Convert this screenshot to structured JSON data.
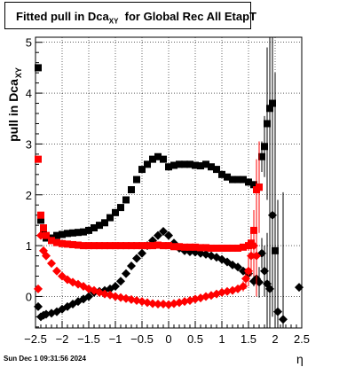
{
  "title": {
    "main": "Fitted pull in Dca",
    "sub": "XY",
    "tail": "for Global Rec All EtapT"
  },
  "timestamp": "Sun Dec  1 09:31:56 2024",
  "chart_data": {
    "type": "scatter",
    "xlabel": "η",
    "ylabel": "pull in Dca",
    "ylabel_sub": "XY",
    "xlim": [
      -2.5,
      2.5
    ],
    "ylim": [
      -0.62,
      5.1
    ],
    "xticks": [
      -2.5,
      -2,
      -1.5,
      -1,
      -0.5,
      0,
      0.5,
      1,
      1.5,
      2,
      2.5
    ],
    "xtick_labels": [
      "−2.5",
      "−2",
      "−1.5",
      "−1",
      "−0.5",
      "0",
      "0.5",
      "1",
      "1.5",
      "2",
      "2.5"
    ],
    "yticks": [
      0,
      1,
      2,
      3,
      4,
      5
    ],
    "ytick_labels": [
      "0",
      "1",
      "2",
      "3",
      "4",
      "5"
    ],
    "grid": true,
    "series": [
      {
        "marker": "square",
        "color": "#000000",
        "x": [
          -2.45,
          -2.4,
          -2.35,
          -2.3,
          -2.2,
          -2.1,
          -2.0,
          -1.9,
          -1.8,
          -1.7,
          -1.6,
          -1.5,
          -1.4,
          -1.3,
          -1.2,
          -1.1,
          -1.0,
          -0.9,
          -0.8,
          -0.7,
          -0.6,
          -0.5,
          -0.4,
          -0.3,
          -0.2,
          -0.1,
          0.0,
          0.1,
          0.2,
          0.3,
          0.4,
          0.5,
          0.6,
          0.7,
          0.8,
          0.9,
          1.0,
          1.1,
          1.2,
          1.3,
          1.4,
          1.5,
          1.6,
          1.7,
          1.75,
          1.8,
          1.85,
          1.9,
          1.95,
          2.0
        ],
        "y": [
          4.5,
          1.5,
          1.3,
          1.15,
          1.15,
          1.2,
          1.22,
          1.24,
          1.25,
          1.26,
          1.27,
          1.3,
          1.35,
          1.4,
          1.45,
          1.55,
          1.65,
          1.75,
          1.9,
          2.1,
          2.3,
          2.5,
          2.6,
          2.7,
          2.75,
          2.7,
          2.55,
          2.58,
          2.6,
          2.6,
          2.6,
          2.58,
          2.57,
          2.6,
          2.55,
          2.5,
          2.4,
          2.35,
          2.3,
          2.3,
          2.3,
          2.25,
          2.2,
          2.15,
          2.75,
          2.95,
          3.4,
          3.7,
          3.8,
          0.9
        ],
        "yerr": [
          0,
          0,
          0,
          0,
          0,
          0,
          0,
          0,
          0,
          0,
          0,
          0,
          0,
          0,
          0,
          0,
          0,
          0,
          0,
          0,
          0,
          0,
          0,
          0,
          0,
          0,
          0,
          0,
          0,
          0,
          0,
          0,
          0,
          0,
          0,
          0,
          0,
          0,
          0,
          0,
          0,
          0,
          0,
          0.2,
          0.3,
          0.6,
          1.5,
          2.5,
          3.2,
          3.5
        ]
      },
      {
        "marker": "diamond",
        "color": "#000000",
        "x": [
          -2.45,
          -2.4,
          -2.35,
          -2.3,
          -2.2,
          -2.1,
          -2.0,
          -1.9,
          -1.8,
          -1.7,
          -1.6,
          -1.5,
          -1.4,
          -1.3,
          -1.2,
          -1.1,
          -1.0,
          -0.9,
          -0.8,
          -0.7,
          -0.6,
          -0.5,
          -0.4,
          -0.3,
          -0.2,
          -0.1,
          0.0,
          0.1,
          0.2,
          0.3,
          0.4,
          0.5,
          0.6,
          0.7,
          0.8,
          0.9,
          1.0,
          1.1,
          1.2,
          1.3,
          1.4,
          1.5,
          1.6,
          1.65,
          1.7,
          1.75,
          1.8,
          1.85,
          1.9,
          1.95,
          2.05,
          2.15,
          2.45
        ],
        "y": [
          -0.2,
          -0.4,
          -0.37,
          -0.35,
          -0.33,
          -0.3,
          -0.25,
          -0.2,
          -0.15,
          -0.1,
          -0.05,
          0.0,
          0.08,
          0.1,
          0.12,
          0.15,
          0.2,
          0.3,
          0.45,
          0.6,
          0.75,
          0.85,
          1.0,
          1.1,
          1.2,
          1.28,
          1.2,
          1.05,
          0.95,
          0.9,
          0.88,
          0.87,
          0.85,
          0.83,
          0.8,
          0.77,
          0.73,
          0.68,
          0.62,
          0.58,
          0.5,
          0.45,
          0.3,
          0.35,
          0.28,
          0.85,
          0.5,
          0.25,
          0.15,
          1.6,
          -0.3,
          -0.45,
          0.18
        ],
        "yerr": [
          0,
          0,
          0,
          0,
          0,
          0,
          0,
          0,
          0,
          0,
          0,
          0,
          0,
          0,
          0,
          0,
          0,
          0,
          0,
          0,
          0,
          0,
          0,
          0,
          0,
          0,
          0,
          0,
          0,
          0,
          0,
          0,
          0,
          0,
          0,
          0,
          0,
          0,
          0,
          0,
          0,
          0,
          0.1,
          0.2,
          0.3,
          0.3,
          0.5,
          1.0,
          1.5,
          2.0,
          2.2,
          2.5,
          0
        ]
      },
      {
        "marker": "square",
        "color": "#ff0000",
        "x": [
          -2.45,
          -2.4,
          -2.35,
          -2.3,
          -2.2,
          -2.1,
          -2.0,
          -1.9,
          -1.8,
          -1.7,
          -1.6,
          -1.5,
          -1.4,
          -1.3,
          -1.2,
          -1.1,
          -1.0,
          -0.9,
          -0.8,
          -0.7,
          -0.6,
          -0.5,
          -0.4,
          -0.3,
          -0.2,
          -0.1,
          0.0,
          0.1,
          0.2,
          0.3,
          0.4,
          0.5,
          0.6,
          0.7,
          0.8,
          0.9,
          1.0,
          1.1,
          1.2,
          1.3,
          1.4,
          1.5,
          1.55,
          1.6,
          1.65,
          1.7
        ],
        "y": [
          2.7,
          1.6,
          1.35,
          1.2,
          1.1,
          1.06,
          1.04,
          1.03,
          1.02,
          1.01,
          1.0,
          1.0,
          1.0,
          1.0,
          1.0,
          1.0,
          1.0,
          1.0,
          1.0,
          1.0,
          1.0,
          1.0,
          1.0,
          1.0,
          1.01,
          1.0,
          1.0,
          0.98,
          0.98,
          0.97,
          0.97,
          0.97,
          0.96,
          0.96,
          0.95,
          0.95,
          0.95,
          0.95,
          0.95,
          0.95,
          0.97,
          1.0,
          1.05,
          1.3,
          2.1,
          2.15
        ],
        "yerr": [
          0,
          0,
          0,
          0,
          0,
          0,
          0,
          0,
          0,
          0,
          0,
          0,
          0,
          0,
          0,
          0,
          0,
          0,
          0,
          0,
          0,
          0,
          0,
          0,
          0,
          0,
          0,
          0,
          0,
          0,
          0,
          0,
          0,
          0,
          0,
          0,
          0,
          0,
          0,
          0,
          0,
          0.1,
          0.2,
          0.4,
          0.6,
          0.9
        ]
      },
      {
        "marker": "diamond",
        "color": "#ff0000",
        "x": [
          -2.45,
          -2.4,
          -2.35,
          -2.3,
          -2.2,
          -2.1,
          -2.0,
          -1.9,
          -1.8,
          -1.7,
          -1.6,
          -1.5,
          -1.4,
          -1.3,
          -1.2,
          -1.1,
          -1.0,
          -0.9,
          -0.8,
          -0.7,
          -0.6,
          -0.5,
          -0.4,
          -0.3,
          -0.2,
          -0.1,
          0.0,
          0.1,
          0.2,
          0.3,
          0.4,
          0.5,
          0.6,
          0.7,
          0.8,
          0.9,
          1.0,
          1.1,
          1.2,
          1.3,
          1.4,
          1.45,
          1.5,
          1.55,
          1.6,
          1.65
        ],
        "y": [
          0.15,
          1.2,
          0.9,
          0.8,
          0.65,
          0.5,
          0.4,
          0.33,
          0.28,
          0.24,
          0.2,
          0.15,
          0.12,
          0.08,
          0.05,
          0.03,
          0.0,
          -0.02,
          -0.04,
          -0.06,
          -0.08,
          -0.1,
          -0.12,
          -0.14,
          -0.15,
          -0.15,
          -0.16,
          -0.14,
          -0.12,
          -0.1,
          -0.08,
          -0.05,
          -0.03,
          0.0,
          0.02,
          0.05,
          0.08,
          0.1,
          0.12,
          0.15,
          0.2,
          0.35,
          0.5,
          0.8,
          1.0,
          0.8
        ],
        "yerr": [
          0,
          0,
          0,
          0,
          0,
          0,
          0,
          0,
          0,
          0,
          0,
          0,
          0,
          0,
          0,
          0,
          0,
          0,
          0,
          0,
          0,
          0,
          0,
          0,
          0,
          0,
          0,
          0,
          0,
          0,
          0,
          0,
          0,
          0,
          0,
          0,
          0,
          0,
          0,
          0,
          0.1,
          0.2,
          0.3,
          0.4,
          0.6,
          0.8
        ]
      }
    ]
  }
}
